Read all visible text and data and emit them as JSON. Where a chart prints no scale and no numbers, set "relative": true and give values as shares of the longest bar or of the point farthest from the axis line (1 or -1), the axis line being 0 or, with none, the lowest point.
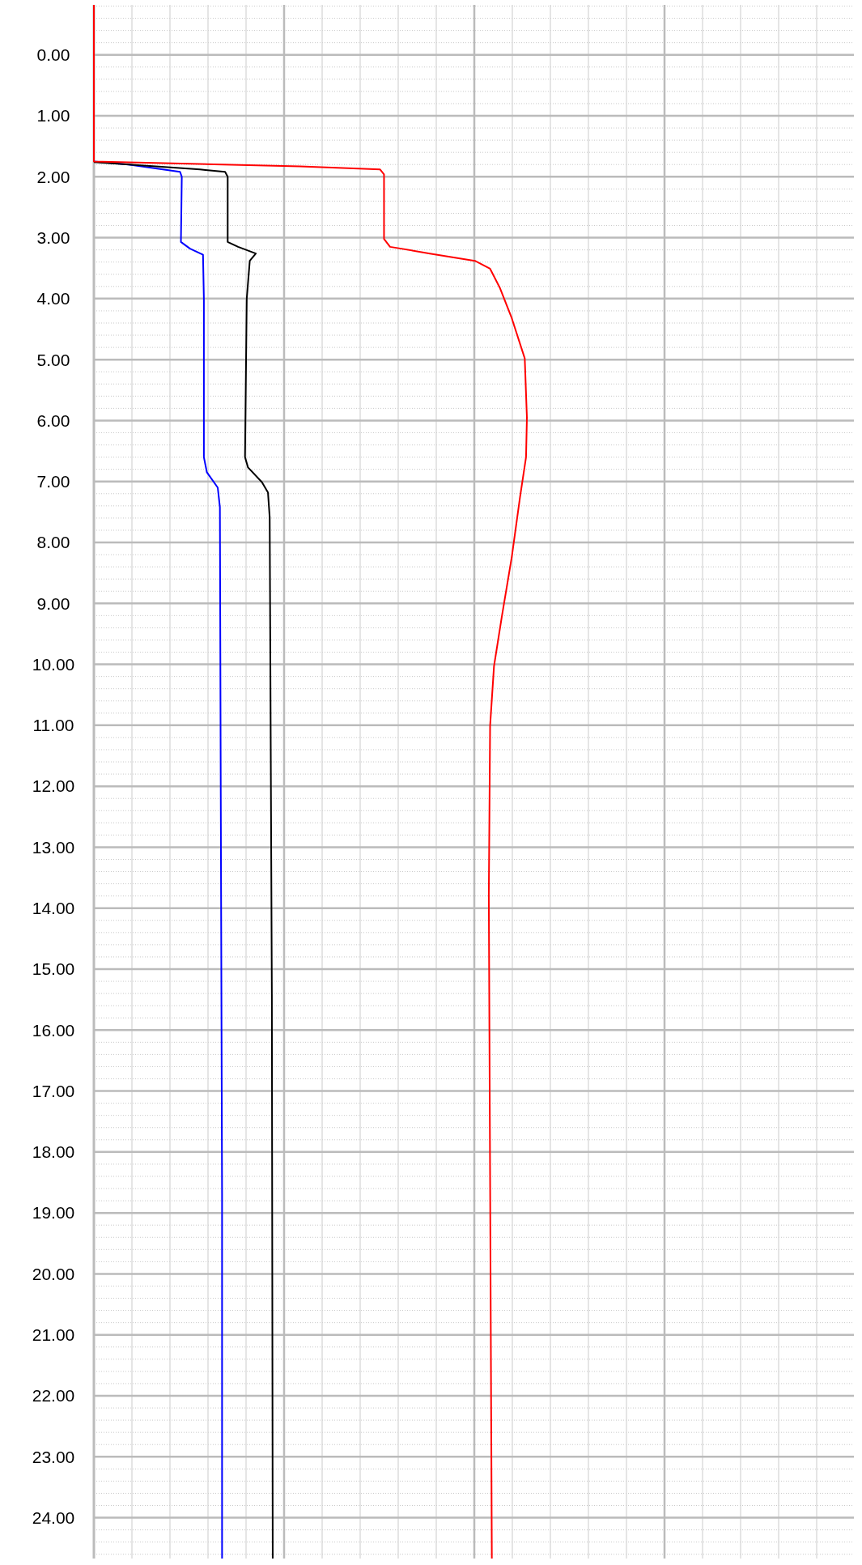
{
  "chart_data": {
    "type": "line",
    "orientation": "horizontal",
    "relative": true,
    "grid": true,
    "line_style": "solid",
    "ylim": [
      24.67,
      -0.82
    ],
    "yticks": [
      {
        "value": 0,
        "label": "0.00"
      },
      {
        "value": 1,
        "label": "1.00"
      },
      {
        "value": 2,
        "label": "2.00"
      },
      {
        "value": 3,
        "label": "3.00"
      },
      {
        "value": 4,
        "label": "4.00"
      },
      {
        "value": 5,
        "label": "5.00"
      },
      {
        "value": 6,
        "label": "6.00"
      },
      {
        "value": 7,
        "label": "7.00"
      },
      {
        "value": 8,
        "label": "8.00"
      },
      {
        "value": 9,
        "label": "9.00"
      },
      {
        "value": 10,
        "label": "10.00"
      },
      {
        "value": 11,
        "label": "11.00"
      },
      {
        "value": 12,
        "label": "12.00"
      },
      {
        "value": 13,
        "label": "13.00"
      },
      {
        "value": 14,
        "label": "14.00"
      },
      {
        "value": 15,
        "label": "15.00"
      },
      {
        "value": 16,
        "label": "16.00"
      },
      {
        "value": 17,
        "label": "17.00"
      },
      {
        "value": 18,
        "label": "18.00"
      },
      {
        "value": 19,
        "label": "19.00"
      },
      {
        "value": 20,
        "label": "20.00"
      },
      {
        "value": 21,
        "label": "21.00"
      },
      {
        "value": 22,
        "label": "22.00"
      },
      {
        "value": 23,
        "label": "23.00"
      },
      {
        "value": 24,
        "label": "24.00"
      }
    ],
    "series": [
      {
        "color": "#0000ff",
        "x": [
          1.75,
          1.8,
          1.92,
          2.0,
          3.07,
          3.18,
          3.28,
          4.0,
          5.63,
          6.6,
          6.85,
          7.1,
          7.42,
          12.15,
          18.68,
          24.67
        ],
        "values": [
          0,
          0.08,
          0.199,
          0.203,
          0.201,
          0.222,
          0.252,
          0.254,
          0.254,
          0.254,
          0.261,
          0.286,
          0.291,
          0.293,
          0.296,
          0.296
        ]
      },
      {
        "color": "#000000",
        "x": [
          1.76,
          1.88,
          1.92,
          2.0,
          3.07,
          3.15,
          3.26,
          3.38,
          4.0,
          6.6,
          6.77,
          7.01,
          7.18,
          7.59,
          15.42,
          24.67
        ],
        "values": [
          0,
          0.245,
          0.303,
          0.309,
          0.309,
          0.333,
          0.374,
          0.36,
          0.353,
          0.349,
          0.356,
          0.388,
          0.402,
          0.406,
          0.411,
          0.413
        ]
      },
      {
        "color": "#ff0000",
        "x": [
          -0.82,
          1.75,
          1.83,
          1.88,
          1.96,
          3.02,
          3.15,
          3.26,
          3.38,
          3.51,
          3.83,
          4.32,
          4.98,
          5.95,
          6.6,
          7.26,
          8.24,
          9.22,
          10.03,
          11.01,
          13.78,
          24.67
        ],
        "values": [
          0,
          0,
          0.476,
          0.661,
          0.67,
          0.67,
          0.684,
          0.776,
          0.88,
          0.915,
          0.938,
          0.965,
          0.995,
          1,
          0.998,
          0.984,
          0.965,
          0.942,
          0.924,
          0.915,
          0.912,
          0.919
        ]
      }
    ]
  }
}
